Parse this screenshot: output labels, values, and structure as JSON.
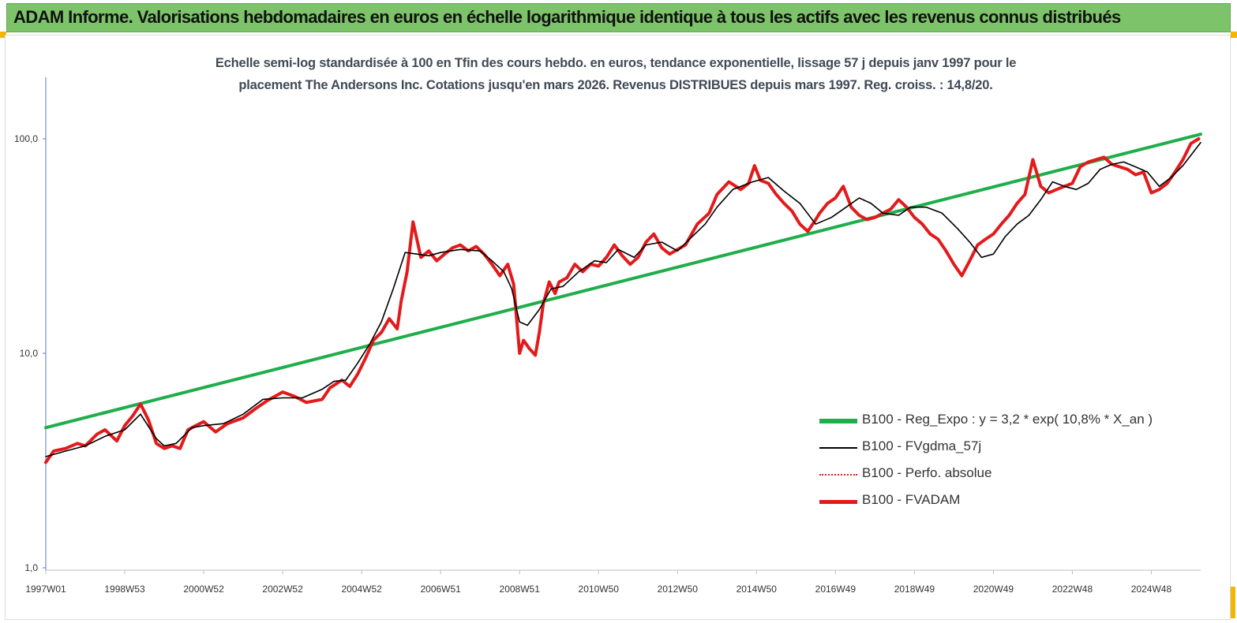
{
  "header": {
    "title": "ADAM Informe. Valorisations hebdomadaires en euros en échelle logarithmique identique à tous les actifs avec les revenus connus distribués"
  },
  "chart_data": {
    "type": "line",
    "title": "Echelle semi-log standardisée à 100 en Tfin des cours hebdo. en euros, tendance exponentielle, lissage 57 j depuis janv 1997 pour le placement The Andersons Inc. Cotations jusqu'en mars 2026. Revenus DISTRIBUES depuis mars 1997. Reg. croiss. : 14,8/20.",
    "title_lines": [
      "Echelle semi-log standardisée à 100 en Tfin des cours hebdo. en euros, tendance exponentielle, lissage 57 j depuis janv 1997 pour le",
      "placement The Andersons Inc. Cotations jusqu'en mars 2026. Revenus DISTRIBUES depuis mars 1997. Reg. croiss. : 14,8/20."
    ],
    "y_scale": "log",
    "ylim": [
      1,
      170
    ],
    "xlim": [
      1997.0,
      2026.25
    ],
    "y_ticks": [
      {
        "value": 1,
        "label": "1,0"
      },
      {
        "value": 10,
        "label": "10,0"
      },
      {
        "value": 100,
        "label": "100,0"
      }
    ],
    "x_ticks": [
      {
        "value": 1997.0,
        "label": "1997W01"
      },
      {
        "value": 1999.0,
        "label": "1998W53"
      },
      {
        "value": 2001.0,
        "label": "2000W52"
      },
      {
        "value": 2003.0,
        "label": "2002W52"
      },
      {
        "value": 2005.0,
        "label": "2004W52"
      },
      {
        "value": 2007.0,
        "label": "2006W51"
      },
      {
        "value": 2009.0,
        "label": "2008W51"
      },
      {
        "value": 2011.0,
        "label": "2010W50"
      },
      {
        "value": 2013.0,
        "label": "2012W50"
      },
      {
        "value": 2015.0,
        "label": "2014W50"
      },
      {
        "value": 2017.0,
        "label": "2016W49"
      },
      {
        "value": 2019.0,
        "label": "2018W49"
      },
      {
        "value": 2021.0,
        "label": "2020W49"
      },
      {
        "value": 2023.0,
        "label": "2022W48"
      },
      {
        "value": 2025.0,
        "label": "2024W48"
      }
    ],
    "grid": false,
    "legend_position": "bottom-right",
    "series": [
      {
        "name": "B100 - Reg_Expo : y = 3,2 * exp( 10,8% *  X_an )",
        "color": "#1fae4b",
        "style": "thick",
        "x": [
          1997.0,
          2026.25
        ],
        "y": [
          4.5,
          105
        ]
      },
      {
        "name": "B100 - FVgdma_57j",
        "color": "#000000",
        "style": "thin",
        "x": [
          1997.0,
          1997.5,
          1998.0,
          1998.5,
          1999.0,
          1999.4,
          1999.8,
          2000.0,
          2000.3,
          2000.7,
          2001.0,
          2001.5,
          2002.0,
          2002.5,
          2003.0,
          2003.5,
          2004.0,
          2004.3,
          2004.6,
          2004.9,
          2005.2,
          2005.5,
          2005.8,
          2006.1,
          2006.4,
          2006.7,
          2007.0,
          2007.5,
          2008.0,
          2008.3,
          2008.6,
          2008.8,
          2009.0,
          2009.2,
          2009.5,
          2009.8,
          2010.1,
          2010.5,
          2010.9,
          2011.2,
          2011.5,
          2011.9,
          2012.2,
          2012.6,
          2013.0,
          2013.3,
          2013.7,
          2014.0,
          2014.4,
          2014.9,
          2015.3,
          2015.7,
          2016.1,
          2016.5,
          2016.9,
          2017.2,
          2017.6,
          2017.9,
          2018.2,
          2018.6,
          2018.9,
          2019.3,
          2019.7,
          2020.1,
          2020.4,
          2020.7,
          2021.0,
          2021.3,
          2021.6,
          2021.9,
          2022.2,
          2022.5,
          2022.8,
          2023.1,
          2023.4,
          2023.7,
          2024.0,
          2024.3,
          2024.6,
          2024.9,
          2025.2,
          2025.5,
          2025.8,
          2026.25
        ],
        "y": [
          3.3,
          3.5,
          3.7,
          4.1,
          4.4,
          5.2,
          4.0,
          3.7,
          3.8,
          4.5,
          4.6,
          4.7,
          5.2,
          6.1,
          6.2,
          6.2,
          6.8,
          7.4,
          7.5,
          9.0,
          11.0,
          14.0,
          20.0,
          29.5,
          29.0,
          28.5,
          29.5,
          30.5,
          30.0,
          27.0,
          24.0,
          20.0,
          14.0,
          13.5,
          16.0,
          20.0,
          20.5,
          24.0,
          27.0,
          26.5,
          30.5,
          28.0,
          32.0,
          33.0,
          30.0,
          34.0,
          40.0,
          48.0,
          58.0,
          63.0,
          66.0,
          57.0,
          50.0,
          40.0,
          43.0,
          47.0,
          53.0,
          50.0,
          45.0,
          44.0,
          48.0,
          48.0,
          45.0,
          38.0,
          33.0,
          28.0,
          29.0,
          35.0,
          40.0,
          44.0,
          52.0,
          63.0,
          60.0,
          58.0,
          62.0,
          72.0,
          76.0,
          78.0,
          74.0,
          70.0,
          60.0,
          66.0,
          75.0,
          96.0
        ]
      },
      {
        "name": "B100 - Perfo. absolue",
        "color": "#e31a1c",
        "style": "dotted",
        "x": [
          1997.0,
          1997.5,
          1998.0,
          1998.5,
          1999.0,
          1999.4,
          1999.8,
          2000.0,
          2000.3,
          2000.7,
          2001.0,
          2001.5,
          2002.0,
          2002.5,
          2003.0,
          2003.5,
          2004.0,
          2004.3,
          2004.6,
          2004.9,
          2005.2,
          2005.5,
          2005.8,
          2006.1,
          2006.4,
          2006.7,
          2007.0,
          2007.5,
          2008.0,
          2008.3,
          2008.6,
          2008.8,
          2009.0,
          2009.2,
          2009.5,
          2009.8,
          2010.1,
          2010.5,
          2010.9,
          2011.2,
          2011.5,
          2011.9,
          2012.2,
          2012.6,
          2013.0,
          2013.3,
          2013.7,
          2014.0,
          2014.4,
          2014.9,
          2015.3,
          2015.7,
          2016.1,
          2016.5,
          2016.9,
          2017.2,
          2017.6,
          2017.9,
          2018.2,
          2018.6,
          2018.9,
          2019.3,
          2019.7,
          2020.1,
          2020.4,
          2020.7,
          2021.0,
          2021.3,
          2021.6,
          2021.9,
          2022.2,
          2022.5,
          2022.8,
          2023.1,
          2023.4,
          2023.7,
          2024.0,
          2024.3,
          2024.6,
          2024.9,
          2025.2,
          2025.5,
          2025.8,
          2026.25
        ],
        "y": [
          3.3,
          3.5,
          3.7,
          4.1,
          4.4,
          5.2,
          4.0,
          3.7,
          3.8,
          4.5,
          4.6,
          4.7,
          5.2,
          6.1,
          6.2,
          6.2,
          6.8,
          7.4,
          7.5,
          9.0,
          11.0,
          14.0,
          20.0,
          29.5,
          29.0,
          28.5,
          29.5,
          30.5,
          30.0,
          27.0,
          24.0,
          20.0,
          14.0,
          13.5,
          16.0,
          20.0,
          20.5,
          24.0,
          27.0,
          26.5,
          30.5,
          28.0,
          32.0,
          33.0,
          30.0,
          34.0,
          40.0,
          48.0,
          58.0,
          63.0,
          66.0,
          57.0,
          50.0,
          40.0,
          43.0,
          47.0,
          53.0,
          50.0,
          45.0,
          44.0,
          48.0,
          48.0,
          45.0,
          38.0,
          33.0,
          28.0,
          29.0,
          35.0,
          40.0,
          44.0,
          52.0,
          63.0,
          60.0,
          58.0,
          62.0,
          72.0,
          76.0,
          78.0,
          74.0,
          70.0,
          60.0,
          66.0,
          75.0,
          96.0
        ]
      },
      {
        "name": "B100 - FVADAM",
        "color": "#e31a1c",
        "style": "thick",
        "x": [
          1997.0,
          1997.2,
          1997.5,
          1997.8,
          1998.0,
          1998.3,
          1998.5,
          1998.8,
          1999.0,
          1999.2,
          1999.4,
          1999.6,
          1999.8,
          2000.0,
          2000.2,
          2000.4,
          2000.6,
          2000.8,
          2001.0,
          2001.3,
          2001.6,
          2002.0,
          2002.3,
          2002.6,
          2003.0,
          2003.3,
          2003.6,
          2004.0,
          2004.2,
          2004.5,
          2004.7,
          2004.9,
          2005.1,
          2005.3,
          2005.5,
          2005.7,
          2005.9,
          2006.0,
          2006.15,
          2006.3,
          2006.5,
          2006.7,
          2006.9,
          2007.1,
          2007.3,
          2007.5,
          2007.7,
          2007.9,
          2008.1,
          2008.3,
          2008.5,
          2008.7,
          2008.85,
          2009.0,
          2009.1,
          2009.25,
          2009.4,
          2009.5,
          2009.6,
          2009.75,
          2009.9,
          2010.0,
          2010.2,
          2010.4,
          2010.6,
          2010.8,
          2011.0,
          2011.2,
          2011.4,
          2011.6,
          2011.8,
          2012.0,
          2012.2,
          2012.4,
          2012.6,
          2012.8,
          2013.0,
          2013.2,
          2013.5,
          2013.8,
          2014.0,
          2014.3,
          2014.6,
          2014.8,
          2014.95,
          2015.1,
          2015.3,
          2015.5,
          2015.7,
          2015.9,
          2016.1,
          2016.3,
          2016.5,
          2016.6,
          2016.8,
          2017.0,
          2017.2,
          2017.4,
          2017.6,
          2017.8,
          2018.0,
          2018.2,
          2018.4,
          2018.6,
          2018.8,
          2019.0,
          2019.2,
          2019.4,
          2019.6,
          2019.8,
          2020.0,
          2020.2,
          2020.4,
          2020.6,
          2020.8,
          2021.0,
          2021.2,
          2021.4,
          2021.6,
          2021.8,
          2022.0,
          2022.2,
          2022.4,
          2022.6,
          2022.8,
          2023.0,
          2023.2,
          2023.4,
          2023.6,
          2023.8,
          2024.0,
          2024.2,
          2024.4,
          2024.6,
          2024.8,
          2025.0,
          2025.2,
          2025.4,
          2025.6,
          2025.8,
          2026.0,
          2026.2
        ],
        "y": [
          3.1,
          3.5,
          3.6,
          3.8,
          3.7,
          4.2,
          4.4,
          3.9,
          4.6,
          5.1,
          5.8,
          4.9,
          3.8,
          3.6,
          3.7,
          3.6,
          4.4,
          4.6,
          4.8,
          4.3,
          4.7,
          5.0,
          5.5,
          6.0,
          6.6,
          6.3,
          5.9,
          6.1,
          6.9,
          7.5,
          7.0,
          8.0,
          9.5,
          11.5,
          12.5,
          14.5,
          13.0,
          17.5,
          24.0,
          41.0,
          28.0,
          30.0,
          27.0,
          29.0,
          31.0,
          32.0,
          30.0,
          31.5,
          29.0,
          26.0,
          23.0,
          26.0,
          21.0,
          10.0,
          11.5,
          10.5,
          9.8,
          12.5,
          17.0,
          21.5,
          19.0,
          21.5,
          22.5,
          26.0,
          24.0,
          26.0,
          25.5,
          28.0,
          32.0,
          28.5,
          26.0,
          28.0,
          33.0,
          36.0,
          31.0,
          29.0,
          30.5,
          32.0,
          40.0,
          45.0,
          55.0,
          63.0,
          58.0,
          62.0,
          75.0,
          64.0,
          62.0,
          55.0,
          50.0,
          46.0,
          40.0,
          37.0,
          42.0,
          45.0,
          50.0,
          53.0,
          60.0,
          48.0,
          44.0,
          42.0,
          43.0,
          45.0,
          47.0,
          52.0,
          48.0,
          43.0,
          40.0,
          36.0,
          34.0,
          30.0,
          26.0,
          23.0,
          27.0,
          32.0,
          34.0,
          36.0,
          40.0,
          44.0,
          50.0,
          55.0,
          80.0,
          60.0,
          56.0,
          58.0,
          60.0,
          62.0,
          74.0,
          78.0,
          80.0,
          82.0,
          76.0,
          74.0,
          72.0,
          68.0,
          70.0,
          56.0,
          58.0,
          62.0,
          70.0,
          80.0,
          95.0,
          100.0
        ]
      }
    ]
  }
}
